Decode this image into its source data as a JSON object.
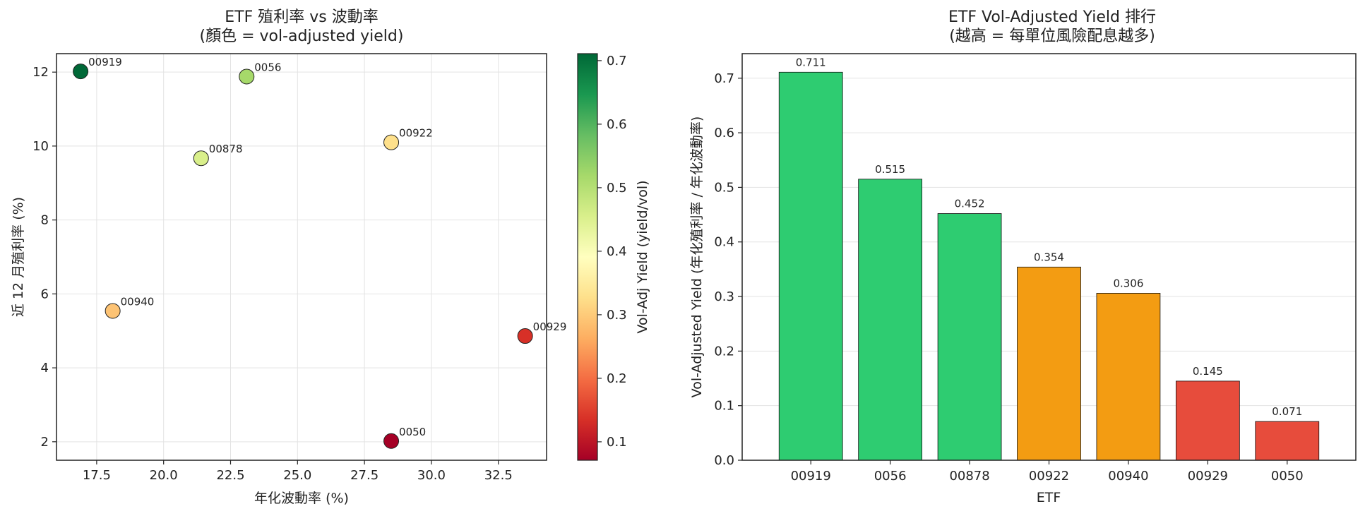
{
  "chart_data": [
    {
      "type": "scatter",
      "title": [
        "ETF 殖利率 vs 波動率",
        "(顏色 = vol-adjusted yield)"
      ],
      "xlabel": "年化波動率 (%)",
      "ylabel": "近 12 月殖利率 (%)",
      "xlim": [
        16.0,
        34.3
      ],
      "ylim": [
        1.5,
        12.5
      ],
      "xticks": [
        17.5,
        20.0,
        22.5,
        25.0,
        27.5,
        30.0,
        32.5
      ],
      "xtick_labels": [
        "17.5",
        "20.0",
        "22.5",
        "25.0",
        "27.5",
        "30.0",
        "32.5"
      ],
      "yticks": [
        2,
        4,
        6,
        8,
        10,
        12
      ],
      "ytick_labels": [
        "2",
        "4",
        "6",
        "8",
        "10",
        "12"
      ],
      "grid": true,
      "colormap": "RdYlGn",
      "colorbar": {
        "label": "Vol-Adj Yield (yield/vol)",
        "range": [
          0.071,
          0.711
        ],
        "ticks": [
          0.1,
          0.2,
          0.3,
          0.4,
          0.5,
          0.6,
          0.7
        ],
        "tick_labels": [
          "0.1",
          "0.2",
          "0.3",
          "0.4",
          "0.5",
          "0.6",
          "0.7"
        ]
      },
      "points": [
        {
          "label": "00919",
          "x": 16.9,
          "y": 12.02,
          "c": 0.711,
          "color": "#006837"
        },
        {
          "label": "0056",
          "x": 23.1,
          "y": 11.88,
          "c": 0.515,
          "color": "#a6d96a"
        },
        {
          "label": "00878",
          "x": 21.4,
          "y": 9.67,
          "c": 0.452,
          "color": "#d9ef8b"
        },
        {
          "label": "00922",
          "x": 28.5,
          "y": 10.1,
          "c": 0.354,
          "color": "#fee08b"
        },
        {
          "label": "00940",
          "x": 18.1,
          "y": 5.54,
          "c": 0.306,
          "color": "#fdc374"
        },
        {
          "label": "00929",
          "x": 33.5,
          "y": 4.86,
          "c": 0.145,
          "color": "#d73027"
        },
        {
          "label": "0050",
          "x": 28.5,
          "y": 2.02,
          "c": 0.071,
          "color": "#a50026"
        }
      ]
    },
    {
      "type": "bar",
      "title": [
        "ETF Vol-Adjusted Yield 排行",
        "(越高 = 每單位風險配息越多)"
      ],
      "xlabel": "ETF",
      "ylabel": "Vol-Adjusted Yield (年化殖利率 / 年化波動率)",
      "ylim": [
        0,
        0.745
      ],
      "yticks": [
        0.0,
        0.1,
        0.2,
        0.3,
        0.4,
        0.5,
        0.6,
        0.7
      ],
      "ytick_labels": [
        "0.0",
        "0.1",
        "0.2",
        "0.3",
        "0.4",
        "0.5",
        "0.6",
        "0.7"
      ],
      "grid": true,
      "categories": [
        "00919",
        "0056",
        "00878",
        "00922",
        "00940",
        "00929",
        "0050"
      ],
      "values": [
        0.711,
        0.515,
        0.452,
        0.354,
        0.306,
        0.145,
        0.071
      ],
      "value_labels": [
        "0.711",
        "0.515",
        "0.452",
        "0.354",
        "0.306",
        "0.145",
        "0.071"
      ],
      "colors": [
        "#2ecc71",
        "#2ecc71",
        "#2ecc71",
        "#f39c12",
        "#f39c12",
        "#e74c3c",
        "#e74c3c"
      ]
    }
  ]
}
